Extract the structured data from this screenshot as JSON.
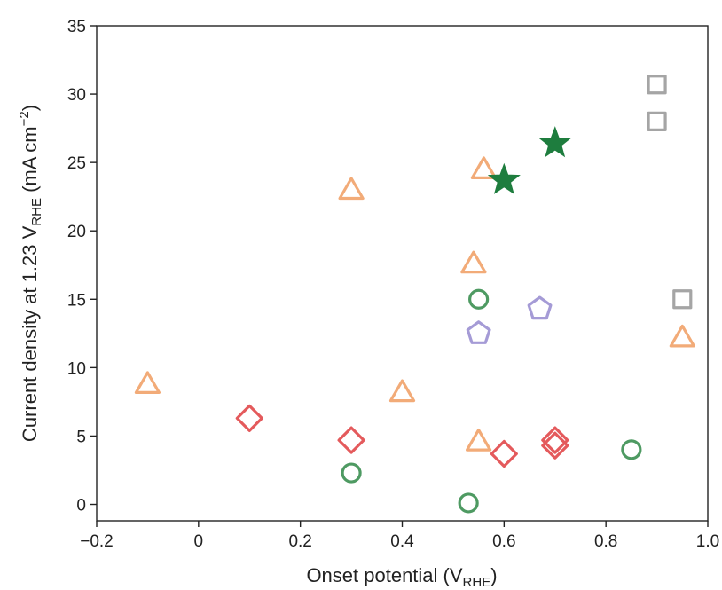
{
  "chart_data": {
    "type": "scatter",
    "xlabel": {
      "main": "Onset potential (V",
      "sub": "RHE",
      "end": ")"
    },
    "ylabel": {
      "main": "Current density at 1.23 V",
      "sub": "RHE",
      "mid": " (mA cm",
      "sup": "−2",
      "end": ")"
    },
    "xlim": [
      -0.2,
      1.0
    ],
    "ylim": [
      -1.2,
      35
    ],
    "x_ticks": [
      -0.2,
      0,
      0.2,
      0.4,
      0.6,
      0.8,
      1.0
    ],
    "x_tick_labels": [
      "−0.2",
      "0",
      "0.2",
      "0.4",
      "0.6",
      "0.8",
      "1.0"
    ],
    "y_ticks": [
      0,
      5,
      10,
      15,
      20,
      25,
      30,
      35
    ],
    "y_tick_labels": [
      "0",
      "5",
      "10",
      "15",
      "20",
      "25",
      "30",
      "35"
    ],
    "grid": false,
    "legend": "none",
    "series": [
      {
        "marker": "triangle",
        "color": "#f2ab78",
        "points": [
          [
            -0.1,
            8.8
          ],
          [
            0.3,
            23.0
          ],
          [
            0.4,
            8.2
          ],
          [
            0.54,
            17.6
          ],
          [
            0.56,
            24.5
          ],
          [
            0.55,
            4.6
          ],
          [
            0.95,
            12.2
          ]
        ]
      },
      {
        "marker": "diamond",
        "color": "#e45a5c",
        "points": [
          [
            0.1,
            6.3
          ],
          [
            0.3,
            4.7
          ],
          [
            0.6,
            3.7
          ],
          [
            0.7,
            4.3
          ],
          [
            0.7,
            4.7
          ]
        ]
      },
      {
        "marker": "circle",
        "color": "#4e9a62",
        "points": [
          [
            0.3,
            2.3
          ],
          [
            0.53,
            0.1
          ],
          [
            0.55,
            15.0
          ],
          [
            0.85,
            4.0
          ]
        ]
      },
      {
        "marker": "pentagon",
        "color": "#a59bd6",
        "points": [
          [
            0.55,
            12.5
          ],
          [
            0.67,
            14.3
          ]
        ]
      },
      {
        "marker": "square",
        "color": "#a5a5a5",
        "points": [
          [
            0.9,
            30.7
          ],
          [
            0.9,
            28.0
          ],
          [
            0.95,
            15.0
          ]
        ]
      },
      {
        "marker": "star",
        "color": "#1e7d3e",
        "points": [
          [
            0.6,
            23.7
          ],
          [
            0.7,
            26.4
          ]
        ]
      }
    ]
  }
}
